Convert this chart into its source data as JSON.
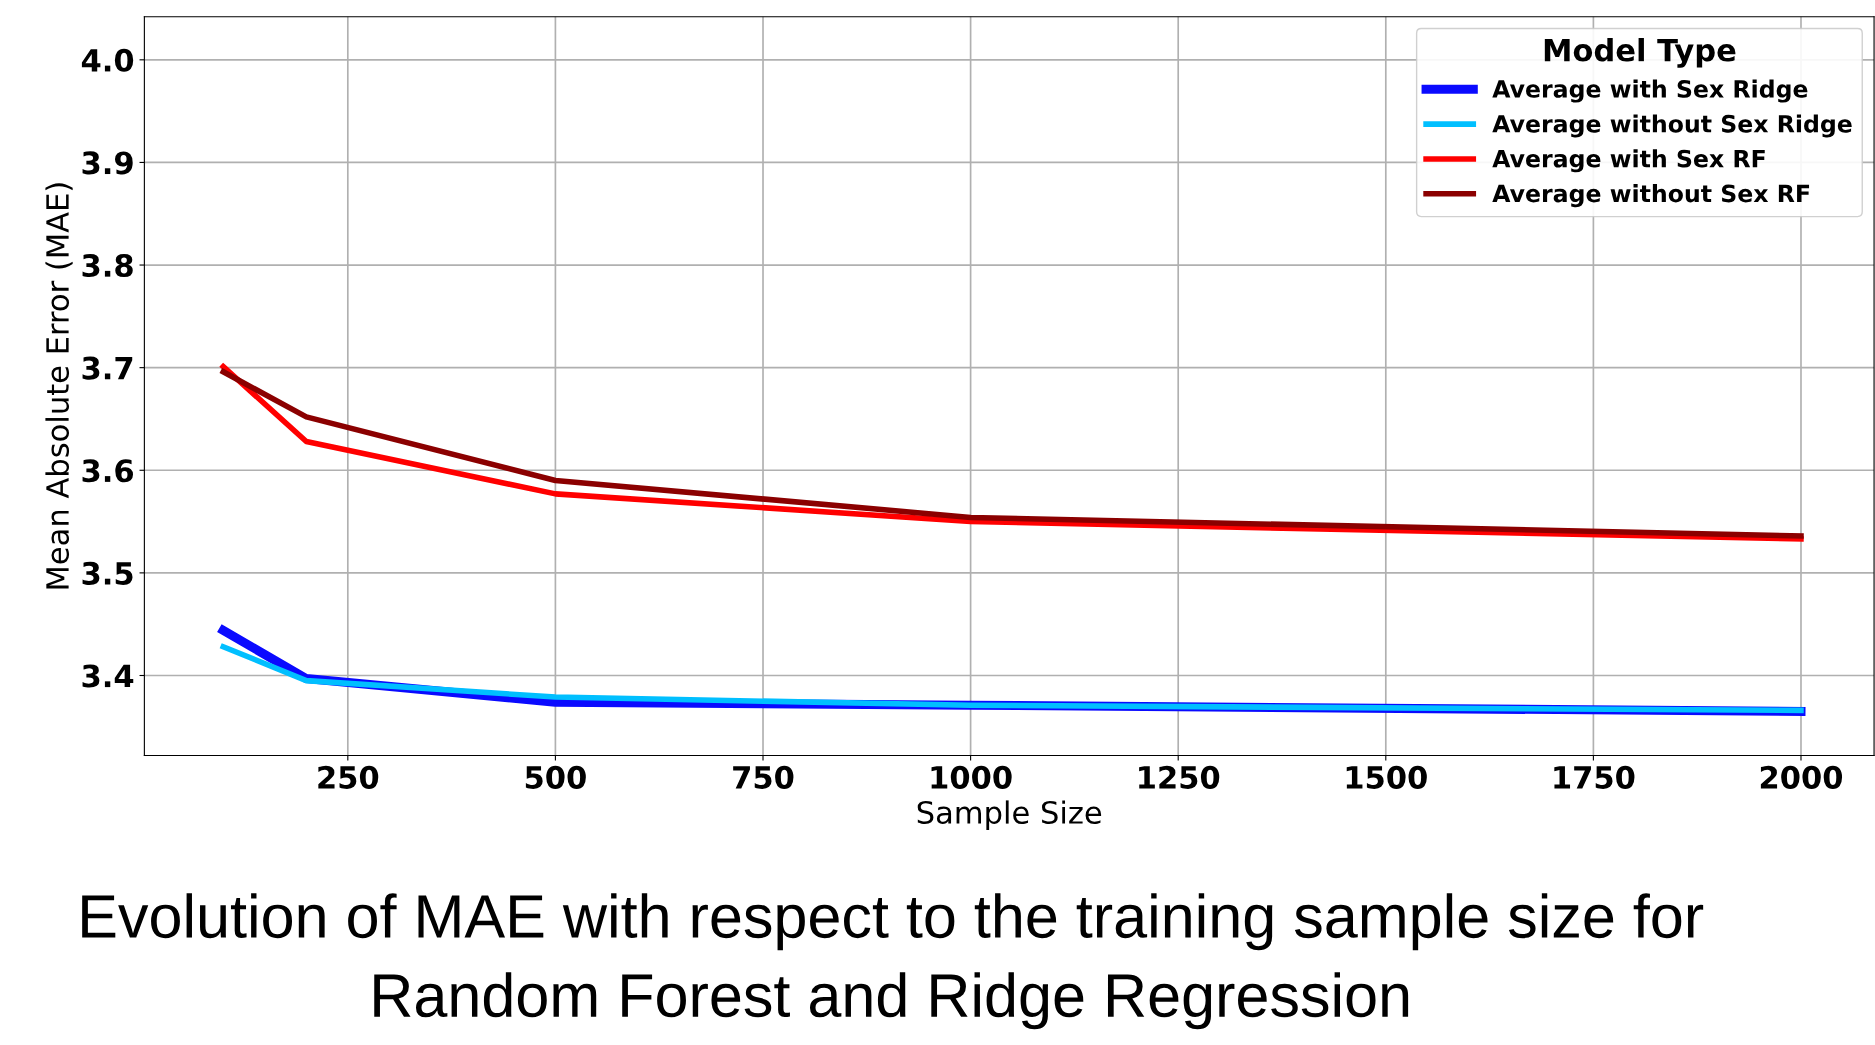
{
  "chart_data": {
    "type": "line",
    "xlabel": "Sample Size",
    "ylabel": "Mean Absolute Error (MAE)",
    "legend_title": "Model Type",
    "x": [
      100,
      200,
      500,
      1000,
      2000
    ],
    "series": [
      {
        "name": "Average with Sex Ridge",
        "color": "#0a0aff",
        "values": [
          3.444,
          3.397,
          3.374,
          3.371,
          3.365
        ]
      },
      {
        "name": "Average without Sex Ridge",
        "color": "#00bfff",
        "values": [
          3.428,
          3.395,
          3.379,
          3.371,
          3.366
        ]
      },
      {
        "name": "Average with Sex RF",
        "color": "#ff0000",
        "values": [
          3.701,
          3.628,
          3.577,
          3.55,
          3.533
        ]
      },
      {
        "name": "Average without Sex RF",
        "color": "#8b0000",
        "values": [
          3.696,
          3.652,
          3.59,
          3.554,
          3.536
        ]
      }
    ],
    "xlim": [
      5,
      2088
    ],
    "xticks": [
      250,
      500,
      750,
      1000,
      1250,
      1500,
      1750,
      2000
    ],
    "ylim": [
      3.322,
      4.042
    ],
    "yticks": [
      {
        "value": 3.4,
        "label": "3.4"
      },
      {
        "value": 3.5,
        "label": "3.5"
      },
      {
        "value": 3.6,
        "label": "3.6"
      },
      {
        "value": 3.7,
        "label": "3.7"
      },
      {
        "value": 3.8,
        "label": "3.8"
      },
      {
        "value": 3.9,
        "label": "3.9"
      },
      {
        "value": 4.0,
        "label": "4.0"
      }
    ],
    "grid": true,
    "legend": "top right",
    "marker": "none",
    "line_style": "solid",
    "annotations": [
      "Evolution of MAE with respect to the training sample size for\nRandom Forest and Ridge Regression"
    ]
  }
}
